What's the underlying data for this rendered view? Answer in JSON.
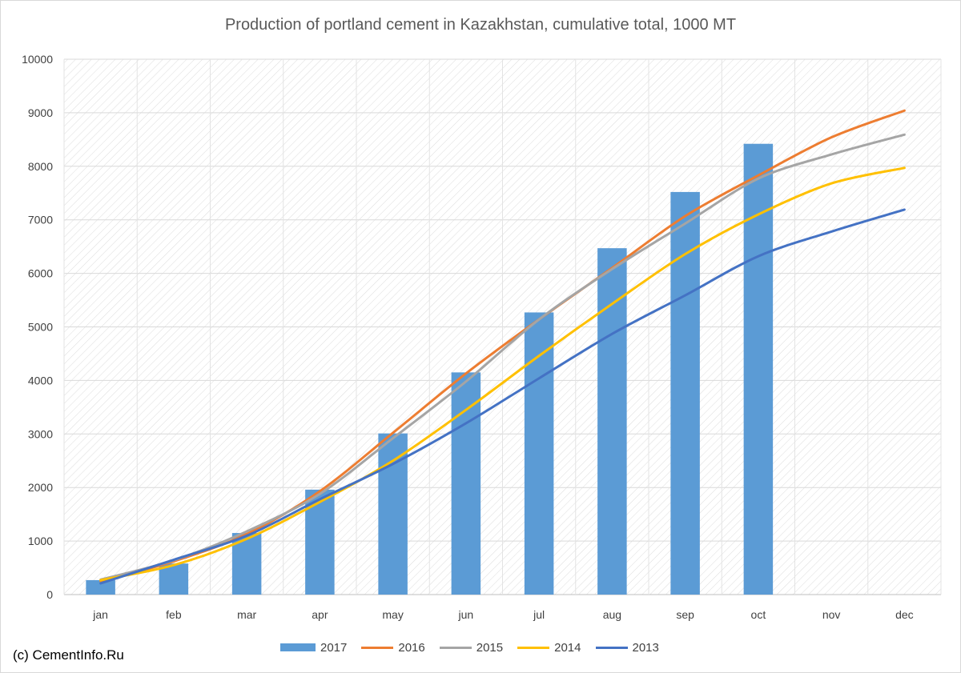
{
  "chart_data": {
    "type": "bar",
    "title": "Production of portland cement in Kazakhstan, cumulative total, 1000 MT",
    "categories": [
      "jan",
      "feb",
      "mar",
      "apr",
      "may",
      "jun",
      "jul",
      "aug",
      "sep",
      "oct",
      "nov",
      "dec"
    ],
    "ylim": [
      0,
      10000
    ],
    "yticks": [
      "0",
      "1000",
      "2000",
      "3000",
      "4000",
      "5000",
      "6000",
      "7000",
      "8000",
      "9000",
      "10000"
    ],
    "grid": true,
    "legend_position": "bottom",
    "series": [
      {
        "name": "2017",
        "kind": "bar",
        "color": "#5b9bd5",
        "values": [
          270,
          580,
          1150,
          1960,
          3010,
          4150,
          5270,
          6470,
          7520,
          8420,
          null,
          null
        ]
      },
      {
        "name": "2016",
        "kind": "line",
        "color": "#ed7d31",
        "values": [
          250,
          620,
          1130,
          1930,
          3020,
          4130,
          5140,
          6100,
          7070,
          7830,
          8540,
          9040
        ]
      },
      {
        "name": "2015",
        "kind": "line",
        "color": "#a5a5a5",
        "values": [
          280,
          640,
          1180,
          1880,
          2920,
          3980,
          5140,
          6080,
          6930,
          7770,
          8220,
          8590
        ]
      },
      {
        "name": "2014",
        "kind": "line",
        "color": "#ffc000",
        "values": [
          270,
          550,
          1040,
          1730,
          2500,
          3450,
          4460,
          5430,
          6360,
          7100,
          7680,
          7970
        ]
      },
      {
        "name": "2013",
        "kind": "line",
        "color": "#4472c4",
        "values": [
          210,
          650,
          1100,
          1780,
          2440,
          3200,
          4040,
          4870,
          5590,
          6320,
          6780,
          7190
        ]
      }
    ]
  },
  "credit": "(c) CementInfo.Ru"
}
